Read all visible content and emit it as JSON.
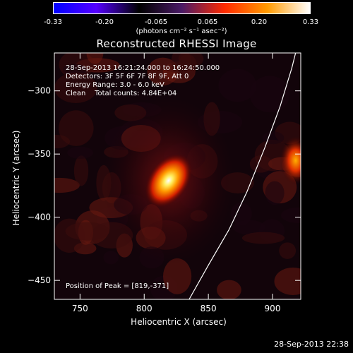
{
  "colorbar": {
    "ticks": [
      "-0.33",
      "-0.20",
      "-0.065",
      "0.065",
      "0.20",
      "0.33"
    ],
    "tick_values": [
      -0.33,
      -0.2,
      -0.065,
      0.065,
      0.2,
      0.33
    ],
    "unit_label": "(photons cm⁻² s⁻¹ asec⁻²)",
    "colors": [
      "#0000ff",
      "#5500ff",
      "#000000",
      "#4a1a66",
      "#ff2a00",
      "#ff9a00",
      "#ffffff"
    ]
  },
  "chart_data": {
    "type": "heatmap",
    "title": "Reconstructed RHESSI Image",
    "xlabel": "Heliocentric X (arcsec)",
    "ylabel": "Heliocentric Y (arcsec)",
    "xlim": [
      730,
      922
    ],
    "ylim": [
      -465,
      -270
    ],
    "xticks": [
      750,
      800,
      850,
      900
    ],
    "yticks": [
      -300,
      -350,
      -400,
      -450
    ],
    "xtick_labels": [
      "750",
      "800",
      "850",
      "900"
    ],
    "ytick_labels": [
      "−300",
      "−350",
      "−400",
      "−450"
    ],
    "annotations": [
      "28-Sep-2013 16:21:24.000 to 16:24:50.000",
      "Detectors: 3F 5F 6F 7F 8F 9F, Att 0",
      "Energy Range: 3.0 - 6.0 keV",
      "Clean    Total counts: 4.84E+04"
    ],
    "peak_label": "Position of Peak = [819,-371]",
    "peak": [
      819,
      -371
    ],
    "secondary_source": [
      918,
      -355
    ],
    "limb_points": [
      [
        835,
        -465
      ],
      [
        850,
        -438
      ],
      [
        866,
        -410
      ],
      [
        880,
        -380
      ],
      [
        894,
        -345
      ],
      [
        906,
        -312
      ],
      [
        915,
        -282
      ],
      [
        918,
        -270
      ]
    ]
  },
  "footer": {
    "timestamp": "28-Sep-2013 22:38"
  }
}
